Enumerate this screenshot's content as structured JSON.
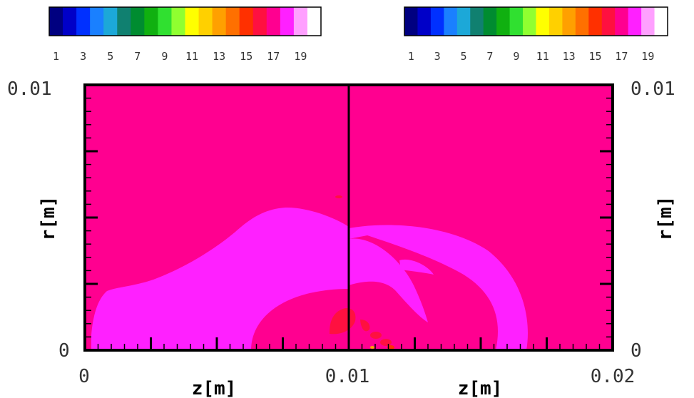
{
  "chart_data": {
    "type": "heatmap",
    "panels": [
      {
        "name": "left",
        "xlim": [
          0,
          0.01
        ],
        "ylim": [
          0,
          0.01
        ],
        "xlabel": "z[m]",
        "ylabel": "r[m]",
        "x_tick_labels": [
          "0",
          "0.01"
        ],
        "y_tick_labels": [
          "0",
          "0.01"
        ]
      },
      {
        "name": "right",
        "xlim": [
          0.01,
          0.02
        ],
        "ylim": [
          0,
          0.01
        ],
        "xlabel": "z[m]",
        "ylabel": "r[m]",
        "x_tick_labels": [
          "0.01",
          "0.02"
        ],
        "y_tick_labels": [
          "0",
          "0.01"
        ]
      }
    ],
    "colorbar": {
      "levels": 20,
      "tick_labels": [
        "1",
        "3",
        "5",
        "7",
        "9",
        "11",
        "13",
        "15",
        "17",
        "19"
      ],
      "colors": [
        "#000080",
        "#0000c8",
        "#0030ff",
        "#1a80ff",
        "#1ca8d8",
        "#108070",
        "#008c30",
        "#10b010",
        "#30e030",
        "#90ff30",
        "#ffff00",
        "#ffd000",
        "#ffa000",
        "#ff7000",
        "#ff3000",
        "#ff1040",
        "#ff0090",
        "#ff20ff",
        "#ffa0ff",
        "#ffffff"
      ]
    },
    "field_colors": {
      "background": "#ff0090",
      "level_high": "#ff20ff",
      "level_low": "#ff1040",
      "level_min": "#ff3000",
      "spot": "#ffa000"
    }
  }
}
